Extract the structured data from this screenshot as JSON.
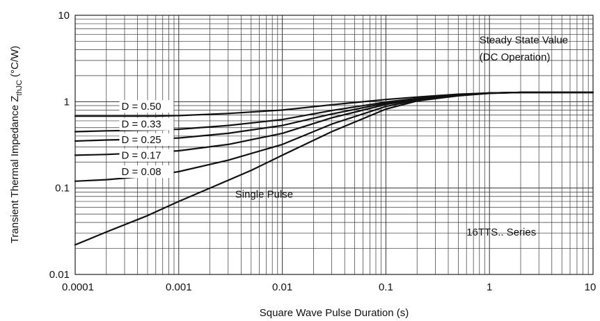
{
  "chart_data": {
    "type": "line",
    "xscale": "log",
    "yscale": "log",
    "xlim": [
      0.0001,
      10
    ],
    "ylim": [
      0.01,
      10
    ],
    "grid": true,
    "xlabel": "Square Wave Pulse Duration (s)",
    "ylabel_main": "Transient Thermal Impedance Z",
    "ylabel_sub": "thJC",
    "ylabel_unit": "(°C/W)",
    "x_ticks": [
      {
        "value": 0.0001,
        "label": "0.0001"
      },
      {
        "value": 0.001,
        "label": "0.001"
      },
      {
        "value": 0.01,
        "label": "0.01"
      },
      {
        "value": 0.1,
        "label": "0.1"
      },
      {
        "value": 1,
        "label": "1"
      },
      {
        "value": 10,
        "label": "10"
      }
    ],
    "y_ticks": [
      {
        "value": 0.01,
        "label": "0.01"
      },
      {
        "value": 0.1,
        "label": "0.1"
      },
      {
        "value": 1,
        "label": "1"
      },
      {
        "value": 10,
        "label": "10"
      }
    ],
    "annotations": [
      {
        "text": "Steady State Value",
        "x": 0.8,
        "y": 5.2
      },
      {
        "text": "(DC Operation)",
        "x": 0.8,
        "y": 3.3
      },
      {
        "text": "Single Pulse",
        "x": 0.0035,
        "y": 0.085
      },
      {
        "text": "16TTS.. Series",
        "x": 0.6,
        "y": 0.031
      }
    ],
    "series": [
      {
        "name": "D = 0.50",
        "label_at": [
          0.00028,
          0.88
        ],
        "points": [
          [
            0.0001,
            0.68
          ],
          [
            0.0002,
            0.68
          ],
          [
            0.0006,
            0.68
          ],
          [
            0.001,
            0.69
          ],
          [
            0.003,
            0.73
          ],
          [
            0.01,
            0.8
          ],
          [
            0.03,
            0.92
          ],
          [
            0.1,
            1.06
          ],
          [
            0.2,
            1.13
          ],
          [
            0.5,
            1.22
          ],
          [
            1,
            1.26
          ],
          [
            2,
            1.28
          ],
          [
            5,
            1.28
          ],
          [
            10,
            1.28
          ]
        ]
      },
      {
        "name": "D = 0.33",
        "label_at": [
          0.00028,
          0.55
        ],
        "points": [
          [
            0.0001,
            0.45
          ],
          [
            0.0002,
            0.46
          ],
          [
            0.0006,
            0.47
          ],
          [
            0.001,
            0.48
          ],
          [
            0.003,
            0.53
          ],
          [
            0.01,
            0.62
          ],
          [
            0.03,
            0.79
          ],
          [
            0.1,
            0.99
          ],
          [
            0.2,
            1.09
          ],
          [
            0.5,
            1.2
          ],
          [
            1,
            1.26
          ],
          [
            2,
            1.28
          ],
          [
            5,
            1.28
          ],
          [
            10,
            1.28
          ]
        ]
      },
      {
        "name": "D = 0.25",
        "label_at": [
          0.00028,
          0.365
        ],
        "points": [
          [
            0.0001,
            0.35
          ],
          [
            0.0002,
            0.36
          ],
          [
            0.0006,
            0.37
          ],
          [
            0.001,
            0.38
          ],
          [
            0.003,
            0.43
          ],
          [
            0.01,
            0.53
          ],
          [
            0.03,
            0.72
          ],
          [
            0.1,
            0.96
          ],
          [
            0.2,
            1.08
          ],
          [
            0.5,
            1.2
          ],
          [
            1,
            1.26
          ],
          [
            2,
            1.28
          ],
          [
            5,
            1.28
          ],
          [
            10,
            1.28
          ]
        ]
      },
      {
        "name": "D = 0.17",
        "label_at": [
          0.00028,
          0.24
        ],
        "points": [
          [
            0.0001,
            0.24
          ],
          [
            0.0002,
            0.245
          ],
          [
            0.0006,
            0.26
          ],
          [
            0.001,
            0.27
          ],
          [
            0.003,
            0.32
          ],
          [
            0.01,
            0.43
          ],
          [
            0.03,
            0.65
          ],
          [
            0.1,
            0.93
          ],
          [
            0.2,
            1.06
          ],
          [
            0.5,
            1.19
          ],
          [
            1,
            1.26
          ],
          [
            2,
            1.28
          ],
          [
            5,
            1.28
          ],
          [
            10,
            1.28
          ]
        ]
      },
      {
        "name": "D = 0.08",
        "label_at": [
          0.00028,
          0.155
        ],
        "points": [
          [
            0.0001,
            0.12
          ],
          [
            0.0002,
            0.125
          ],
          [
            0.0006,
            0.14
          ],
          [
            0.001,
            0.155
          ],
          [
            0.003,
            0.21
          ],
          [
            0.01,
            0.32
          ],
          [
            0.03,
            0.55
          ],
          [
            0.1,
            0.88
          ],
          [
            0.2,
            1.04
          ],
          [
            0.5,
            1.18
          ],
          [
            1,
            1.25
          ],
          [
            2,
            1.28
          ],
          [
            5,
            1.28
          ],
          [
            10,
            1.28
          ]
        ]
      },
      {
        "name": "Single Pulse",
        "label_at": null,
        "points": [
          [
            0.0001,
            0.022
          ],
          [
            0.0002,
            0.031
          ],
          [
            0.0005,
            0.048
          ],
          [
            0.001,
            0.07
          ],
          [
            0.002,
            0.1
          ],
          [
            0.005,
            0.16
          ],
          [
            0.01,
            0.24
          ],
          [
            0.03,
            0.45
          ],
          [
            0.1,
            0.82
          ],
          [
            0.2,
            1.02
          ],
          [
            0.5,
            1.17
          ],
          [
            1,
            1.25
          ],
          [
            2,
            1.28
          ],
          [
            5,
            1.28
          ],
          [
            10,
            1.28
          ]
        ]
      }
    ],
    "colors": {
      "line": "#111111",
      "grid": "#333333",
      "axis": "#222222"
    }
  }
}
